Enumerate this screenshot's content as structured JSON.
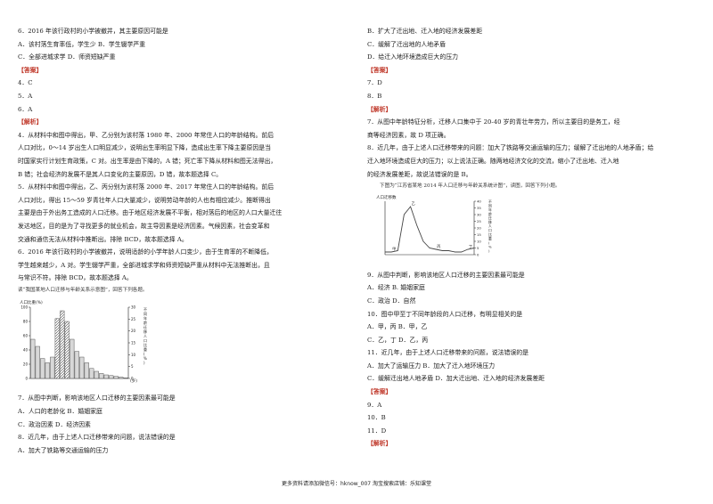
{
  "left": {
    "lines_a": [
      "6．2016 年该行政村的小学被撤并，其主要原因可能是",
      "A．该村落生育率低，学生少  B．学生辍学严重",
      "C．全部进城求学              D．师资短缺严重"
    ],
    "answer_tag": "【答案】",
    "answers": [
      "4．C",
      "5．A",
      "6．A"
    ],
    "analysis_tag": "【解析】",
    "analysis": [
      "4．从材料中和图中得出，甲、乙分别为该村落 1980 年、2000 年常住人口的年龄结构。前后",
      "人口对比，0～14 岁出生人口明显减少，说明出生率明显下降，造成出生率下降主要原因是当",
      "时国家实行计划生育政策，C 对。出生率是由下降的，A 错；死亡率下降从材料和图无法得出，",
      "B 错；社会经济的发展不是其人口变化的主要原因，D 错，故本题选择 C。",
      "5．从材料中和图中得出，乙、丙分别为该村落 2000 年、2017 年常住人口的年龄结构。前后",
      "人口对比，得出 15～59 岁青壮年人口大量减少，说明劳动年龄的人也有相应减少。推断得出",
      "主要是由于外出务工造成的人口迁移。由于地区经济发展不平衡，相对落后的地区的人口大量迁往",
      "发达地区，目的是为了寻找更多的就业机会，故主导因素是经济因素。气候因素，社会变革和",
      "交通和通信无法从材料中推断出。排除 BCD，故本题选择 A。",
      "6．2016 年该行政村的小学被撤并，说明适龄的小学年龄人口变少，由于生育率的不断降低，",
      "学生越来越少，A 对。学生辍学严重，全部进城求学和师资短缺严重从材料中无法推断出，且",
      "与常识不符。排除 BCD，故本题选择 A。"
    ],
    "figure_caption": "读“我国某地人口迁移与年龄关系示意图”，回答下列各题。",
    "questions": [
      "7．从图中判断，影响该地区人口迁移的主要因素最可能是",
      "A．人口的老龄化          B．婚姻家庭",
      "C．政治因素              D．经济因素",
      "8．近几年，由于上述人口迁移带来的问题，说法错误的是",
      "A．加大了铁路等交通运输的压力"
    ]
  },
  "right": {
    "lines_a": [
      "B．扩大了迁出地、迁入地的经济发展差距",
      "C．缓解了迁出地的人地矛盾",
      "D．给迁入地环境造成巨大的压力"
    ],
    "answer_tag": "【答案】",
    "answers": [
      "7．D",
      "8．B"
    ],
    "analysis_tag": "【解析】",
    "analysis": [
      "7．从图中年龄特征分析，迁移人口集中于 20-40 岁的青壮年劳力，所以主要目的是务工，经",
      "商等经济因素，故 D 项正确。",
      "8．近几年，由于上述人口迁移带来的问题：加大了铁路等交通运输的压力；缓解了迁出地的人地矛盾；给",
      "迁入地环境造成巨大的压力；以上说法正确。随两地经济文化的交流，缩小了迁出地、迁入地",
      "的经济发展差距，故说法错误的是 B。"
    ],
    "figure_caption": "下图为“江苏省某地 2014 年人口迁移与年龄关系统计图”，读图，回答下列小题。",
    "questions": [
      "9．从图中判断，影响该地区人口迁移的主要因素最可能是",
      "A．经济 B. 婚姻家庭",
      "C．政治 D．自然",
      "10．图中甲至丁不同年龄段的人口迁移，有明显相关的是",
      "A．甲，丙  B．甲，乙",
      "C．乙，丁  D．乙，丙",
      "11．近几年，由于上述人口迁移带来的问题，说法错误的是",
      "A．加大了运输压力            B．加大了迁入地环境压力",
      "C．缓解迁出地人地矛盾        D．加大迁出地、迁入地的经济发展差距"
    ],
    "answer_tag2": "【答案】",
    "answers2": [
      "9．A",
      "10．B",
      "11．D"
    ],
    "analysis_tag2": "【解析】"
  },
  "footer": "更多资料请添加微信号：hknow_007 淘宝搜索店铺：乐知课堂",
  "chart_data": [
    {
      "type": "bar",
      "ylabel": "人口比重(%)",
      "ylabel_right": "不同年龄迁移人口比重(%)",
      "ylim": [
        0,
        100
      ],
      "yticks": [
        0,
        20,
        40,
        60,
        80,
        100
      ],
      "yticks_right": [
        0,
        5,
        10,
        15,
        20,
        25,
        30
      ],
      "xlabel": "(岁)",
      "values": [
        55,
        45,
        28,
        22,
        30,
        84,
        95,
        80,
        55,
        38,
        30,
        22,
        14,
        10,
        7,
        5,
        4,
        3,
        2,
        1
      ]
    },
    {
      "type": "line",
      "ylabel": "人口迁移数",
      "ylabel_right": "不同年龄迁移人口比重(%)",
      "yticks_right": [
        0,
        5,
        10,
        15,
        20,
        25,
        30,
        35,
        40
      ],
      "labels": [
        "甲",
        "乙",
        "丙",
        "丁"
      ],
      "x": [
        0,
        5,
        10,
        15,
        20,
        25,
        30,
        35,
        40,
        45,
        50,
        55,
        60,
        65,
        70
      ],
      "y": [
        2,
        2,
        3,
        30,
        36,
        22,
        10,
        5,
        4,
        3,
        3,
        2,
        2,
        4,
        5
      ]
    }
  ]
}
